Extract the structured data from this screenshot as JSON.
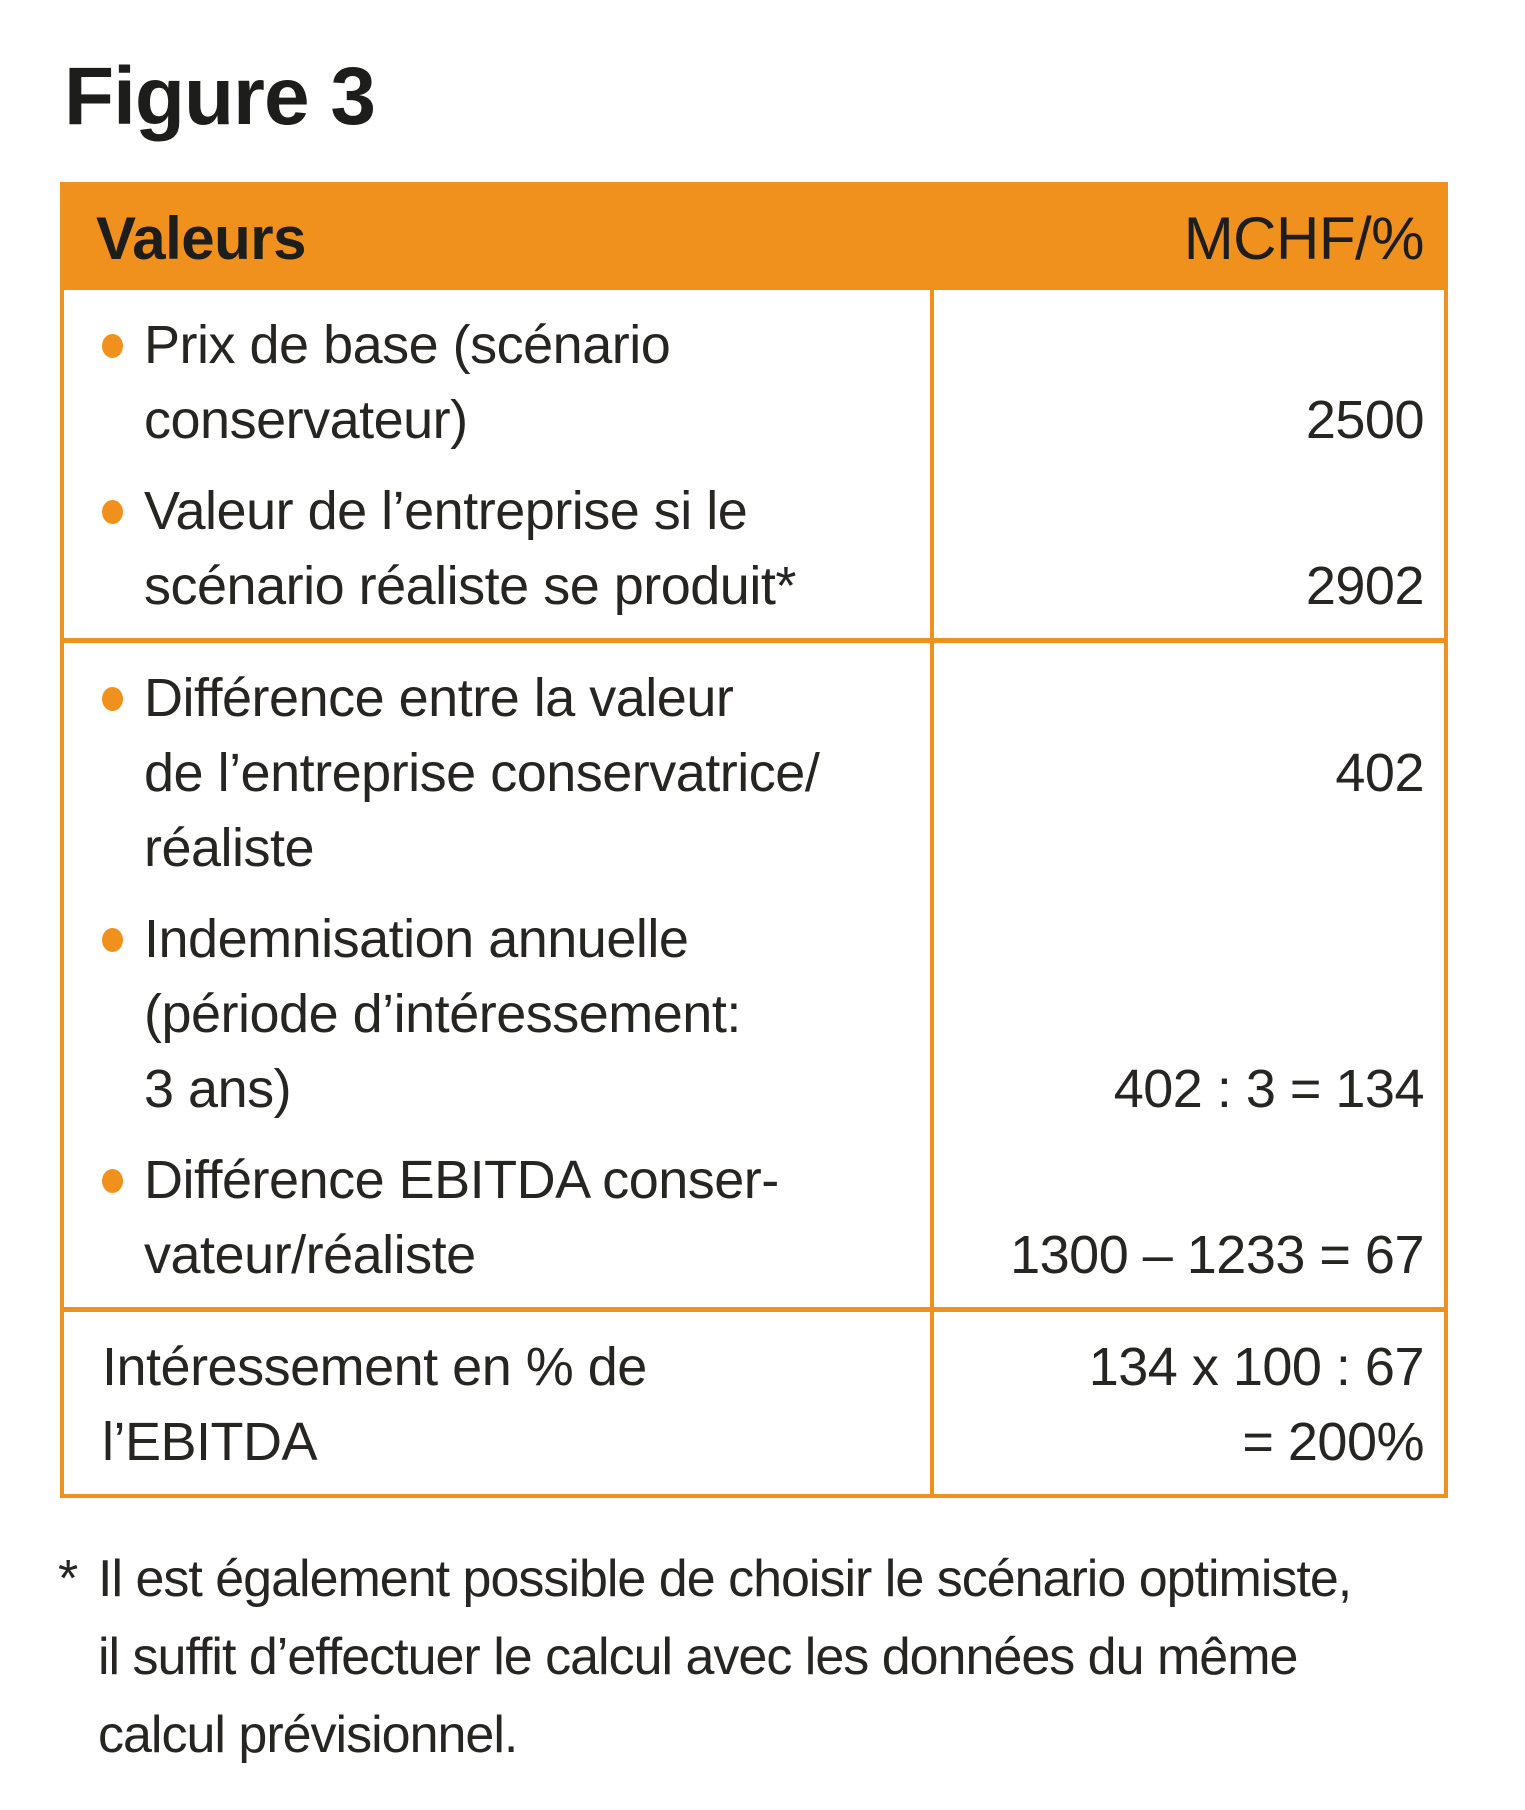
{
  "figure_title": "Figure 3",
  "colors": {
    "accent_orange": "#F0911E",
    "text_ink": "#1D1D1B"
  },
  "table": {
    "header": {
      "left": "Valeurs",
      "right": "MCHF/%"
    },
    "sections": [
      {
        "items": [
          {
            "bullet": true,
            "text": "Prix de base (scénario\nconservateur)",
            "value": "2500"
          },
          {
            "bullet": true,
            "text": "Valeur de l’entreprise si le\nscénario réaliste se produit*",
            "value": "2902"
          }
        ]
      },
      {
        "items": [
          {
            "bullet": true,
            "text": "Différence entre la valeur\nde l’entreprise conservatrice/\nréaliste",
            "value": "402"
          },
          {
            "bullet": true,
            "text": "Indemnisation annuelle\n(période d’intéressement:\n3 ans)",
            "value": "402 : 3 = 134"
          },
          {
            "bullet": true,
            "text": "Différence EBITDA conser-\nvateur/réaliste",
            "value": "1300 – 1233 = 67"
          }
        ]
      },
      {
        "items": [
          {
            "bullet": false,
            "text": "Intéressement en % de\nl’EBITDA",
            "value": "134 x 100 : 67\n= 200%"
          }
        ]
      }
    ]
  },
  "footnote": {
    "marker": "*",
    "text": "Il est également possible de choisir le scénario optimiste,\nil suffit d’effectuer le calcul avec les données du même\ncalcul prévisionnel."
  }
}
